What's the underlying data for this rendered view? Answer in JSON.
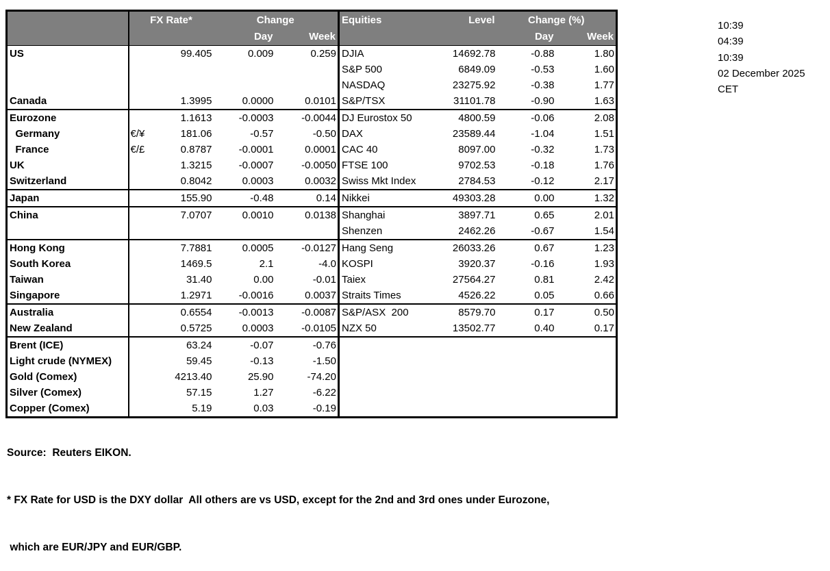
{
  "table": {
    "headers": {
      "fx_rate": "FX Rate*",
      "change": "Change",
      "day": "Day",
      "week": "Week",
      "equities": "Equities",
      "level": "Level",
      "change_pct": "Change (%)",
      "eq_day": "Day",
      "eq_week": "Week"
    },
    "rows": [
      {
        "label": "US",
        "pair": "",
        "rate": "99.405",
        "day": "0.009",
        "week": "0.259",
        "eq": "DJIA",
        "level": "14692.78",
        "eq_day": "-0.88",
        "eq_week": "1.80",
        "group_start": false
      },
      {
        "label": "",
        "pair": "",
        "rate": "",
        "day": "",
        "week": "",
        "eq": "S&P 500",
        "level": "6849.09",
        "eq_day": "-0.53",
        "eq_week": "1.60",
        "group_start": false
      },
      {
        "label": "",
        "pair": "",
        "rate": "",
        "day": "",
        "week": "",
        "eq": "NASDAQ",
        "level": "23275.92",
        "eq_day": "-0.38",
        "eq_week": "1.77",
        "group_start": false
      },
      {
        "label": "Canada",
        "pair": "",
        "rate": "1.3995",
        "day": "0.0000",
        "week": "0.0101",
        "eq": "S&P/TSX",
        "level": "31101.78",
        "eq_day": "-0.90",
        "eq_week": "1.63",
        "group_start": false
      },
      {
        "label": "Eurozone",
        "pair": "",
        "rate": "1.1613",
        "day": "-0.0003",
        "week": "-0.0044",
        "eq": "DJ Eurostox 50",
        "level": "4800.59",
        "eq_day": "-0.06",
        "eq_week": "2.08",
        "group_start": true
      },
      {
        "label": "  Germany",
        "pair": "€/¥",
        "rate": "181.06",
        "day": "-0.57",
        "week": "-0.50",
        "eq": "DAX",
        "level": "23589.44",
        "eq_day": "-1.04",
        "eq_week": "1.51",
        "group_start": false
      },
      {
        "label": "  France",
        "pair": "€/£",
        "rate": "0.8787",
        "day": "-0.0001",
        "week": "0.0001",
        "eq": "CAC 40",
        "level": "8097.00",
        "eq_day": "-0.32",
        "eq_week": "1.73",
        "group_start": false
      },
      {
        "label": "UK",
        "pair": "",
        "rate": "1.3215",
        "day": "-0.0007",
        "week": "-0.0050",
        "eq": "FTSE 100",
        "level": "9702.53",
        "eq_day": "-0.18",
        "eq_week": "1.76",
        "group_start": false
      },
      {
        "label": "Switzerland",
        "pair": "",
        "rate": "0.8042",
        "day": "0.0003",
        "week": "0.0032",
        "eq": "Swiss Mkt Index",
        "level": "2784.53",
        "eq_day": "-0.12",
        "eq_week": "2.17",
        "group_start": false
      },
      {
        "label": "Japan",
        "pair": "",
        "rate": "155.90",
        "day": "-0.48",
        "week": "0.14",
        "eq": "Nikkei",
        "level": "49303.28",
        "eq_day": "0.00",
        "eq_week": "1.32",
        "group_start": true
      },
      {
        "label": "China",
        "pair": "",
        "rate": "7.0707",
        "day": "0.0010",
        "week": "0.0138",
        "eq": "Shanghai",
        "level": "3897.71",
        "eq_day": "0.65",
        "eq_week": "2.01",
        "group_start": true
      },
      {
        "label": "",
        "pair": "",
        "rate": "",
        "day": "",
        "week": "",
        "eq": "Shenzen",
        "level": "2462.26",
        "eq_day": "-0.67",
        "eq_week": "1.54",
        "group_start": false
      },
      {
        "label": "Hong Kong",
        "pair": "",
        "rate": "7.7881",
        "day": "0.0005",
        "week": "-0.0127",
        "eq": "Hang Seng",
        "level": "26033.26",
        "eq_day": "0.67",
        "eq_week": "1.23",
        "group_start": true
      },
      {
        "label": "South Korea",
        "pair": "",
        "rate": "1469.5",
        "day": "2.1",
        "week": "-4.0",
        "eq": "KOSPI",
        "level": "3920.37",
        "eq_day": "-0.16",
        "eq_week": "1.93",
        "group_start": false
      },
      {
        "label": "Taiwan",
        "pair": "",
        "rate": "31.40",
        "day": "0.00",
        "week": "-0.01",
        "eq": "Taiex",
        "level": "27564.27",
        "eq_day": "0.81",
        "eq_week": "2.42",
        "group_start": false
      },
      {
        "label": "Singapore",
        "pair": "",
        "rate": "1.2971",
        "day": "-0.0016",
        "week": "0.0037",
        "eq": "Straits Times",
        "level": "4526.22",
        "eq_day": "0.05",
        "eq_week": "0.66",
        "group_start": false
      },
      {
        "label": "Australia",
        "pair": "",
        "rate": "0.6554",
        "day": "-0.0013",
        "week": "-0.0087",
        "eq": "S&P/ASX  200",
        "level": "8579.70",
        "eq_day": "0.17",
        "eq_week": "0.50",
        "group_start": true
      },
      {
        "label": "New Zealand",
        "pair": "",
        "rate": "0.5725",
        "day": "0.0003",
        "week": "-0.0105",
        "eq": "NZX 50",
        "level": "13502.77",
        "eq_day": "0.40",
        "eq_week": "0.17",
        "group_start": false
      },
      {
        "label": "Brent (ICE)",
        "pair": "",
        "rate": "63.24",
        "day": "-0.07",
        "week": "-0.76",
        "eq": "",
        "level": "",
        "eq_day": "",
        "eq_week": "",
        "group_start": true
      },
      {
        "label": "Light crude (NYMEX)",
        "pair": "",
        "rate": "59.45",
        "day": "-0.13",
        "week": "-1.50",
        "eq": "",
        "level": "",
        "eq_day": "",
        "eq_week": "",
        "group_start": false
      },
      {
        "label": "Gold (Comex)",
        "pair": "",
        "rate": "4213.40",
        "day": "25.90",
        "week": "-74.20",
        "eq": "",
        "level": "",
        "eq_day": "",
        "eq_week": "",
        "group_start": false
      },
      {
        "label": "Silver (Comex)",
        "pair": "",
        "rate": "57.15",
        "day": "1.27",
        "week": "-6.22",
        "eq": "",
        "level": "",
        "eq_day": "",
        "eq_week": "",
        "group_start": false
      },
      {
        "label": "Copper (Comex)",
        "pair": "",
        "rate": "5.19",
        "day": "0.03",
        "week": "-0.19",
        "eq": "",
        "level": "",
        "eq_day": "",
        "eq_week": "",
        "group_start": false
      }
    ]
  },
  "meta_panel": {
    "timestamps": [
      "10:39",
      "04:39",
      "10:39",
      "02 December 2025",
      "CET"
    ]
  },
  "footer": {
    "source": "Source:  Reuters EIKON.",
    "note1": "* FX Rate for USD is the DXY dollar  All others are vs USD, except for the 2nd and 3rd ones under Eurozone,",
    "note2": " which are EUR/JPY and EUR/GBP."
  },
  "colors": {
    "header_bg": "#7f7f7f",
    "header_text": "#ffffff",
    "border": "#000000",
    "body_text": "#000000"
  }
}
